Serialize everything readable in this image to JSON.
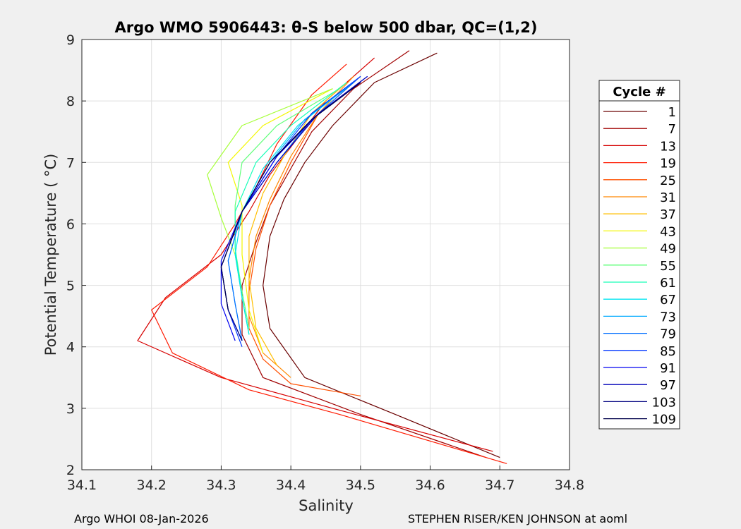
{
  "chart_data": {
    "type": "line",
    "title": "Argo WMO 5906443: θ-S below 500 dbar,  QC=(1,2)",
    "xlabel": "Salinity",
    "ylabel": "Potential Temperature ( °C)",
    "xlim": [
      34.1,
      34.8
    ],
    "ylim": [
      2,
      9
    ],
    "x_ticks": [
      "34.1",
      "34.2",
      "34.3",
      "34.4",
      "34.5",
      "34.6",
      "34.7",
      "34.8"
    ],
    "y_ticks": [
      "2",
      "3",
      "4",
      "5",
      "6",
      "7",
      "8",
      "9"
    ],
    "grid": true,
    "legend": {
      "title": "Cycle #",
      "placement": "right-outside",
      "entries": [
        {
          "label": "1",
          "color": "#6a0000"
        },
        {
          "label": "7",
          "color": "#a00000"
        },
        {
          "label": "13",
          "color": "#d60000"
        },
        {
          "label": "19",
          "color": "#ff1a00"
        },
        {
          "label": "25",
          "color": "#ff5000"
        },
        {
          "label": "31",
          "color": "#ff8800"
        },
        {
          "label": "37",
          "color": "#ffbf00"
        },
        {
          "label": "43",
          "color": "#f3f700"
        },
        {
          "label": "49",
          "color": "#a6ff39"
        },
        {
          "label": "55",
          "color": "#5fff78"
        },
        {
          "label": "61",
          "color": "#18ffb8"
        },
        {
          "label": "67",
          "color": "#00e4f0"
        },
        {
          "label": "73",
          "color": "#00aaff"
        },
        {
          "label": "79",
          "color": "#006dff"
        },
        {
          "label": "85",
          "color": "#0035ff"
        },
        {
          "label": "91",
          "color": "#0000f0"
        },
        {
          "label": "97",
          "color": "#0000b8"
        },
        {
          "label": "103",
          "color": "#000080"
        },
        {
          "label": "109",
          "color": "#00004a"
        }
      ]
    },
    "series": [
      {
        "name": "1",
        "color": "#6a0000",
        "salinity": [
          34.61,
          34.52,
          34.46,
          34.42,
          34.39,
          34.37,
          34.36,
          34.37,
          34.42,
          34.55,
          34.7
        ],
        "theta": [
          8.78,
          8.3,
          7.6,
          7.0,
          6.4,
          5.8,
          5.0,
          4.3,
          3.5,
          2.9,
          2.2
        ]
      },
      {
        "name": "7",
        "color": "#a00000",
        "salinity": [
          34.57,
          34.49,
          34.43,
          34.4,
          34.37,
          34.35,
          34.33,
          34.33,
          34.36,
          34.5,
          34.68
        ],
        "theta": [
          8.82,
          8.2,
          7.5,
          6.9,
          6.3,
          5.7,
          5.0,
          4.2,
          3.5,
          2.9,
          2.2
        ]
      },
      {
        "name": "13",
        "color": "#d60000",
        "salinity": [
          34.52,
          34.45,
          34.41,
          34.37,
          34.34,
          34.3,
          34.22,
          34.18,
          34.3,
          34.46,
          34.69
        ],
        "theta": [
          8.7,
          8.0,
          7.4,
          6.8,
          6.2,
          5.5,
          4.8,
          4.1,
          3.5,
          3.0,
          2.3
        ]
      },
      {
        "name": "19",
        "color": "#ff1a00",
        "salinity": [
          34.48,
          34.43,
          34.38,
          34.35,
          34.32,
          34.28,
          34.2,
          34.23,
          34.34,
          34.47,
          34.71
        ],
        "theta": [
          8.6,
          8.1,
          7.3,
          6.6,
          6.0,
          5.3,
          4.6,
          3.9,
          3.3,
          2.9,
          2.1
        ]
      },
      {
        "name": "25",
        "color": "#ff5000",
        "salinity": [
          34.5,
          34.44,
          34.4,
          34.37,
          34.35,
          34.34,
          34.34,
          34.36,
          34.4,
          34.5
        ],
        "theta": [
          8.4,
          7.8,
          7.0,
          6.3,
          5.6,
          4.9,
          4.3,
          3.8,
          3.4,
          3.2
        ]
      },
      {
        "name": "31",
        "color": "#ff8800",
        "salinity": [
          34.49,
          34.44,
          34.4,
          34.37,
          34.35,
          34.34,
          34.34,
          34.36,
          34.4
        ],
        "theta": [
          8.4,
          7.8,
          7.1,
          6.4,
          5.8,
          5.1,
          4.5,
          3.9,
          3.5
        ]
      },
      {
        "name": "37",
        "color": "#ffbf00",
        "salinity": [
          34.48,
          34.43,
          34.39,
          34.36,
          34.34,
          34.34,
          34.35,
          34.38
        ],
        "theta": [
          8.3,
          7.8,
          7.1,
          6.5,
          5.8,
          5.1,
          4.3,
          3.7
        ]
      },
      {
        "name": "43",
        "color": "#f3f700",
        "salinity": [
          34.46,
          34.36,
          34.31,
          34.33,
          34.33,
          34.34,
          34.36
        ],
        "theta": [
          8.2,
          7.6,
          7.0,
          6.3,
          5.5,
          4.6,
          3.9
        ]
      },
      {
        "name": "49",
        "color": "#a6ff39",
        "salinity": [
          34.46,
          34.33,
          34.28,
          34.3,
          34.32,
          34.33,
          34.34
        ],
        "theta": [
          8.2,
          7.6,
          6.8,
          6.1,
          5.5,
          4.8,
          4.2
        ]
      },
      {
        "name": "55",
        "color": "#5fff78",
        "salinity": [
          34.47,
          34.38,
          34.33,
          34.32,
          34.32,
          34.33,
          34.34
        ],
        "theta": [
          8.2,
          7.6,
          7.0,
          6.3,
          5.6,
          4.9,
          4.3
        ]
      },
      {
        "name": "61",
        "color": "#18ffb8",
        "salinity": [
          34.48,
          34.4,
          34.35,
          34.32,
          34.32,
          34.33,
          34.34
        ],
        "theta": [
          8.3,
          7.6,
          7.0,
          6.2,
          5.6,
          4.8,
          4.2
        ]
      },
      {
        "name": "67",
        "color": "#00e4f0",
        "salinity": [
          34.49,
          34.41,
          34.36,
          34.33,
          34.32,
          34.33,
          34.34
        ],
        "theta": [
          8.3,
          7.6,
          6.9,
          6.2,
          5.5,
          4.8,
          4.2
        ]
      },
      {
        "name": "73",
        "color": "#00aaff",
        "salinity": [
          34.49,
          34.42,
          34.37,
          34.33,
          34.31,
          34.32,
          34.33
        ],
        "theta": [
          8.3,
          7.7,
          7.0,
          6.2,
          5.4,
          4.7,
          4.1
        ]
      },
      {
        "name": "79",
        "color": "#006dff",
        "salinity": [
          34.5,
          34.43,
          34.38,
          34.33,
          34.31,
          34.32,
          34.33
        ],
        "theta": [
          8.4,
          7.7,
          7.0,
          6.2,
          5.4,
          4.7,
          4.1
        ]
      },
      {
        "name": "85",
        "color": "#0035ff",
        "salinity": [
          34.5,
          34.43,
          34.38,
          34.33,
          34.3,
          34.31,
          34.33
        ],
        "theta": [
          8.4,
          7.8,
          7.1,
          6.2,
          5.3,
          4.6,
          4.0
        ]
      },
      {
        "name": "91",
        "color": "#0000f0",
        "salinity": [
          34.51,
          34.44,
          34.38,
          34.33,
          34.3,
          34.3,
          34.32
        ],
        "theta": [
          8.4,
          7.8,
          7.1,
          6.2,
          5.4,
          4.7,
          4.1
        ]
      },
      {
        "name": "97",
        "color": "#0000b8",
        "salinity": [
          34.51,
          34.44,
          34.38,
          34.33,
          34.3,
          34.31,
          34.33
        ],
        "theta": [
          8.4,
          7.8,
          7.0,
          6.2,
          5.3,
          4.6,
          4.1
        ]
      },
      {
        "name": "103",
        "color": "#000080",
        "salinity": [
          34.5,
          34.43,
          34.37,
          34.33,
          34.3,
          34.31,
          34.33
        ],
        "theta": [
          8.3,
          7.7,
          7.0,
          6.2,
          5.3,
          4.6,
          4.1
        ]
      },
      {
        "name": "109",
        "color": "#00004a",
        "salinity": [
          34.5,
          34.43,
          34.37,
          34.33,
          34.3,
          34.31
        ],
        "theta": [
          8.3,
          7.7,
          7.0,
          6.2,
          5.3,
          4.6
        ]
      }
    ]
  },
  "footer": {
    "left": "Argo WHOI 08-Jan-2026",
    "right": "STEPHEN RISER/KEN JOHNSON at aoml"
  }
}
